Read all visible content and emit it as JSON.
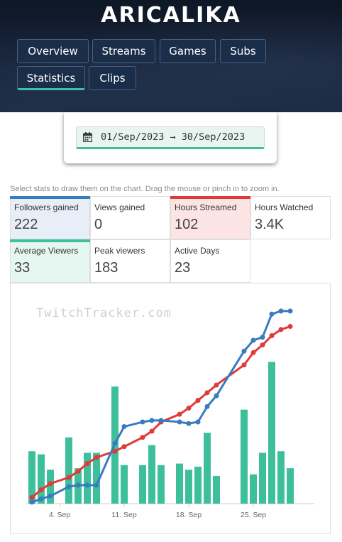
{
  "channel": {
    "name": "ARICALIKA"
  },
  "nav": {
    "tabs": [
      {
        "label": "Overview",
        "active": false
      },
      {
        "label": "Streams",
        "active": false
      },
      {
        "label": "Games",
        "active": false
      },
      {
        "label": "Subs",
        "active": false
      },
      {
        "label": "Statistics",
        "active": true
      },
      {
        "label": "Clips",
        "active": false
      }
    ]
  },
  "date_range": {
    "icon": "calendar-icon",
    "text": "01/Sep/2023 → 30/Sep/2023"
  },
  "hint": "Select stats to draw them on the chart. Drag the mouse or pinch in to zoom in.",
  "stats": [
    {
      "label": "Followers gained",
      "value": "222",
      "selected": true,
      "color": "#3a7bbf",
      "bg": "#e8eef7"
    },
    {
      "label": "Views gained",
      "value": "0",
      "selected": false,
      "color": "",
      "bg": "#ffffff"
    },
    {
      "label": "Hours Streamed",
      "value": "102",
      "selected": true,
      "color": "#e03a3a",
      "bg": "#fde4e4"
    },
    {
      "label": "Hours Watched",
      "value": "3.4K",
      "selected": false,
      "color": "",
      "bg": "#ffffff"
    },
    {
      "label": "Average Viewers",
      "value": "33",
      "selected": true,
      "color": "#3fbf9f",
      "bg": "#e6f6f0"
    },
    {
      "label": "Peak viewers",
      "value": "183",
      "selected": false,
      "color": "",
      "bg": "#ffffff"
    },
    {
      "label": "Active Days",
      "value": "23",
      "selected": false,
      "color": "",
      "bg": "#ffffff"
    }
  ],
  "watermark": "TwitchTracker.com",
  "chart_data": {
    "type": "bar",
    "x_ticks": [
      "4. Sep",
      "11. Sep",
      "18. Sep",
      "25. Sep"
    ],
    "x_tick_days": [
      4,
      11,
      18,
      25
    ],
    "series": [
      {
        "type": "bar",
        "color": "#3dbf9c",
        "points": [
          [
            1,
            34
          ],
          [
            2,
            32
          ],
          [
            3,
            22
          ],
          [
            5,
            43
          ],
          [
            6,
            23
          ],
          [
            7,
            33
          ],
          [
            8,
            33
          ],
          [
            10,
            76
          ],
          [
            11,
            25
          ],
          [
            13,
            25
          ],
          [
            14,
            38
          ],
          [
            15,
            25
          ],
          [
            17,
            26
          ],
          [
            18,
            22
          ],
          [
            19,
            24
          ],
          [
            20,
            46
          ],
          [
            21,
            18
          ],
          [
            24,
            61
          ],
          [
            25,
            19
          ],
          [
            26,
            33
          ],
          [
            27,
            92
          ],
          [
            28,
            34
          ],
          [
            29,
            23
          ]
        ]
      },
      {
        "type": "line",
        "color": "#e03a3a",
        "points": [
          [
            1,
            4
          ],
          [
            2,
            9
          ],
          [
            3,
            13
          ],
          [
            5,
            17
          ],
          [
            6,
            21
          ],
          [
            7,
            26
          ],
          [
            8,
            30
          ],
          [
            10,
            34
          ],
          [
            11,
            37
          ],
          [
            13,
            43
          ],
          [
            14,
            47
          ],
          [
            15,
            53
          ],
          [
            17,
            58
          ],
          [
            18,
            62
          ],
          [
            19,
            67
          ],
          [
            20,
            72
          ],
          [
            21,
            77
          ],
          [
            24,
            90
          ],
          [
            25,
            98
          ],
          [
            26,
            103
          ],
          [
            27,
            109
          ],
          [
            28,
            113
          ],
          [
            29,
            115
          ]
        ]
      },
      {
        "type": "line",
        "color": "#3a7bbf",
        "points": [
          [
            1,
            1
          ],
          [
            2,
            3
          ],
          [
            3,
            5
          ],
          [
            5,
            11
          ],
          [
            6,
            12
          ],
          [
            7,
            12
          ],
          [
            8,
            12
          ],
          [
            10,
            39
          ],
          [
            11,
            50
          ],
          [
            13,
            53
          ],
          [
            14,
            54
          ],
          [
            15,
            54
          ],
          [
            17,
            53
          ],
          [
            18,
            52
          ],
          [
            19,
            53
          ],
          [
            20,
            63
          ],
          [
            21,
            70
          ],
          [
            24,
            99
          ],
          [
            25,
            106
          ],
          [
            26,
            108
          ],
          [
            27,
            123
          ],
          [
            28,
            125
          ],
          [
            29,
            125
          ]
        ]
      }
    ]
  }
}
